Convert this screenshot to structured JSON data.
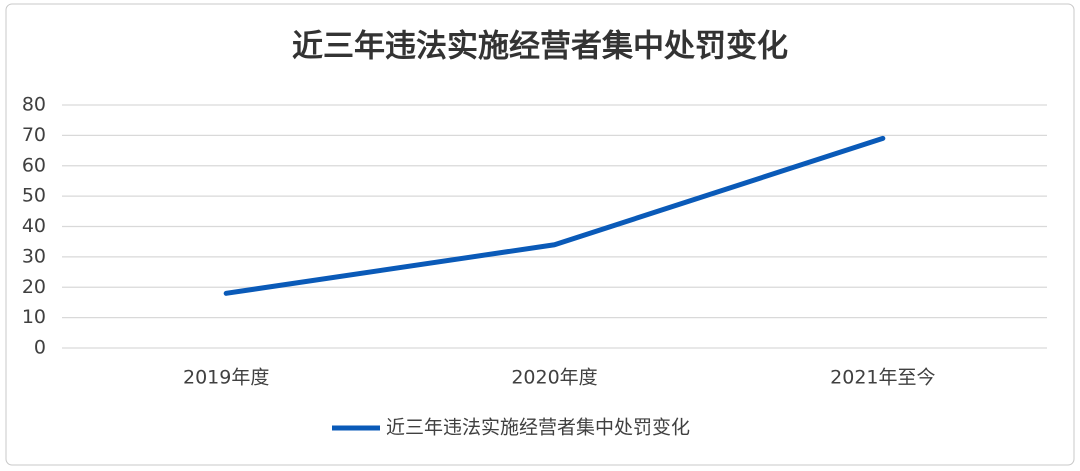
{
  "chart_data": {
    "type": "line",
    "title": "近三年违法实施经营者集中处罚变化",
    "categories": [
      "2019年度",
      "2020年度",
      "2021年至今"
    ],
    "series": [
      {
        "name": "近三年违法实施经营者集中处罚变化",
        "color": "#0a5ab8",
        "values": [
          18,
          34,
          69
        ]
      }
    ],
    "ylim": [
      0,
      80
    ],
    "yticks": [
      0,
      10,
      20,
      30,
      40,
      50,
      60,
      70,
      80
    ],
    "grid": true,
    "legend": "bottom"
  }
}
